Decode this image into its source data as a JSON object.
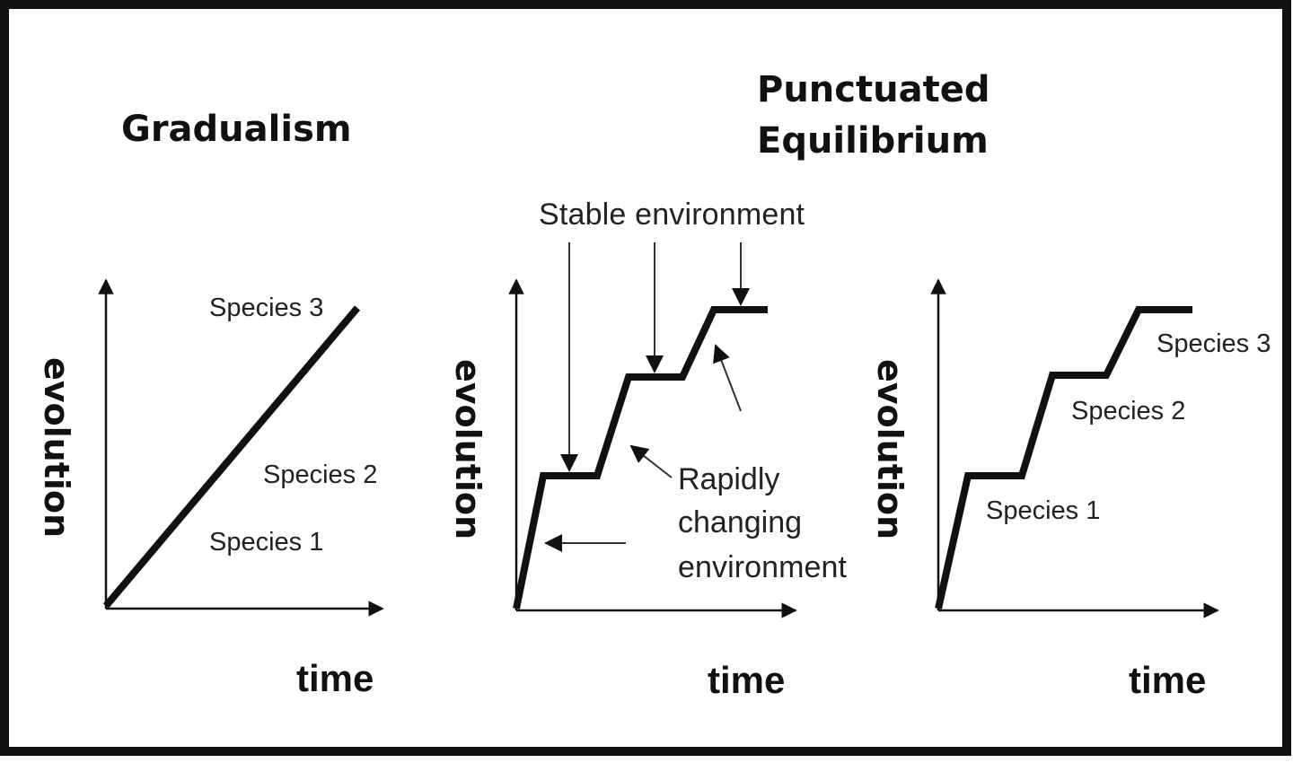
{
  "gradualism": {
    "title": "Gradualism",
    "y_label": "evolution",
    "x_label": "time",
    "species": [
      "Species 1",
      "Species 2",
      "Species 3"
    ]
  },
  "punctuated": {
    "title_line1": "Punctuated",
    "title_line2": "Equilibrium",
    "annotated": {
      "y_label": "evolution",
      "x_label": "time",
      "stable_label": "Stable environment",
      "rapid_line1": "Rapidly",
      "rapid_line2": "changing",
      "rapid_line3": "environment"
    },
    "species_graph": {
      "y_label": "evolution",
      "x_label": "time",
      "species": [
        "Species 1",
        "Species 2",
        "Species 3"
      ]
    }
  }
}
